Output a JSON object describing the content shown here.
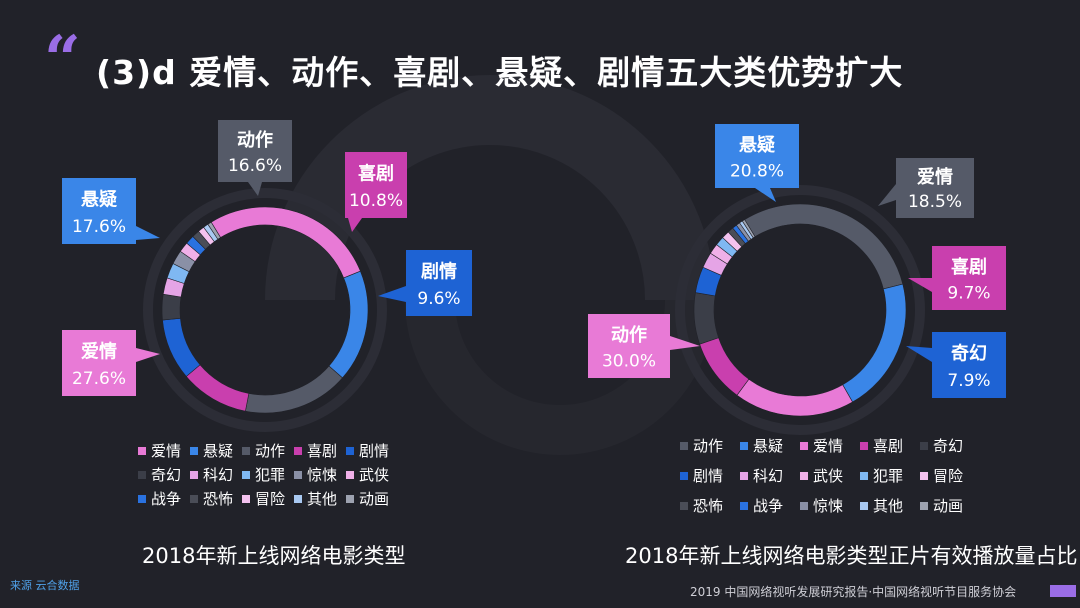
{
  "header": {
    "quote_mark": "“",
    "title": "(3)d 爱情、动作、喜剧、悬疑、剧情五大类优势扩大"
  },
  "footer": {
    "source": "来源  云合数据",
    "credit": "2019 中国网络视听发展研究报告·中国网络视听节目服务协会"
  },
  "colors": {
    "爱情": "#e87ad6",
    "悬疑": "#3a86e8",
    "动作": "#555a68",
    "喜剧": "#c93fae",
    "剧情": "#1e63d4",
    "奇幻": "#3b3e48",
    "科幻": "#e5a4e6",
    "犯罪": "#7fb8f2",
    "惊悚": "#8a90a6",
    "武侠": "#f0b0e8",
    "战争": "#2a72e0",
    "恐怖": "#4a4d57",
    "冒险": "#f4c2ef",
    "其他": "#a9c9f2",
    "动画": "#9da2b0"
  },
  "chart_data": [
    {
      "type": "pie",
      "subtitle": "2018年新上线网络电影类型",
      "categories": [
        "爱情",
        "悬疑",
        "动作",
        "喜剧",
        "剧情",
        "奇幻",
        "科幻",
        "犯罪",
        "惊悚",
        "武侠",
        "战争",
        "恐怖",
        "冒险",
        "其他",
        "动画"
      ],
      "values": [
        27.6,
        17.6,
        16.6,
        10.8,
        9.6,
        4.0,
        2.6,
        2.4,
        2.2,
        1.6,
        1.4,
        1.2,
        1.0,
        0.8,
        0.6
      ],
      "labels": [
        {
          "name": "动作",
          "value": "16.6%"
        },
        {
          "name": "喜剧",
          "value": "10.8%"
        },
        {
          "name": "悬疑",
          "value": "17.6%"
        },
        {
          "name": "剧情",
          "value": "9.6%"
        },
        {
          "name": "爱情",
          "value": "27.6%"
        }
      ],
      "legend": [
        "爱情",
        "悬疑",
        "动作",
        "喜剧",
        "剧情",
        "奇幻",
        "科幻",
        "犯罪",
        "惊悚",
        "武侠",
        "战争",
        "恐怖",
        "冒险",
        "其他",
        "动画"
      ]
    },
    {
      "type": "pie",
      "subtitle": "2018年新上线网络电影类型正片有效播放量占比",
      "categories": [
        "动作",
        "悬疑",
        "爱情",
        "喜剧",
        "奇幻",
        "剧情",
        "科幻",
        "武侠",
        "犯罪",
        "冒险",
        "恐怖",
        "战争",
        "惊悚",
        "其他",
        "动画"
      ],
      "values": [
        30.0,
        20.8,
        18.5,
        9.7,
        7.9,
        4.0,
        2.4,
        1.6,
        1.4,
        1.2,
        0.9,
        0.7,
        0.6,
        0.5,
        0.4
      ],
      "labels": [
        {
          "name": "悬疑",
          "value": "20.8%"
        },
        {
          "name": "爱情",
          "value": "18.5%"
        },
        {
          "name": "喜剧",
          "value": "9.7%"
        },
        {
          "name": "动作",
          "value": "30.0%"
        },
        {
          "name": "奇幻",
          "value": "7.9%"
        }
      ],
      "legend": [
        "动作",
        "悬疑",
        "爱情",
        "喜剧",
        "奇幻",
        "剧情",
        "科幻",
        "武侠",
        "犯罪",
        "冒险",
        "恐怖",
        "战争",
        "惊悚",
        "其他",
        "动画"
      ]
    }
  ]
}
